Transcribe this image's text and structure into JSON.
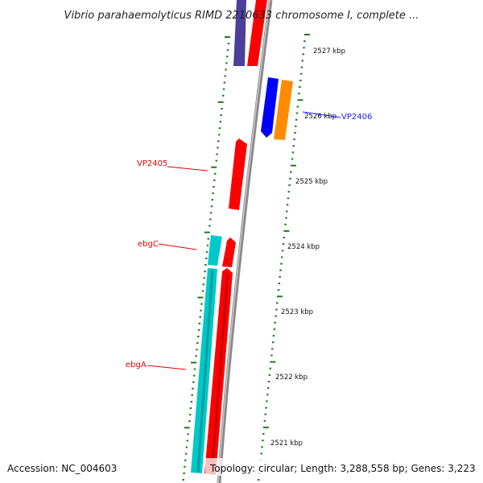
{
  "map": {
    "title": "Vibrio parahaemolyticus RIMD 2210633 chromosome I, complete ...",
    "accession": "Accession: NC_004603",
    "summary": "Topology: circular; Length: 3,288,558 bp; Genes: 3,223"
  },
  "ticks": [
    {
      "label": "2527 kbp"
    },
    {
      "label": "2526 kbp"
    },
    {
      "label": "2525 kbp"
    },
    {
      "label": "2524 kbp"
    },
    {
      "label": "2523 kbp"
    },
    {
      "label": "2522 kbp"
    },
    {
      "label": "2521 kbp"
    }
  ],
  "gene_labels": [
    {
      "name": "VP2406",
      "color": "#1a1aff"
    },
    {
      "name": "VP2405",
      "color": "#e00000"
    },
    {
      "name": "ebgC",
      "color": "#e00000"
    },
    {
      "name": "ebgA",
      "color": "#e00000"
    }
  ],
  "colors": {
    "backbone": "#8a8a8a",
    "tick_marks": "#1f7a1f",
    "red_gene": "#ff0000",
    "blue_gene": "#0000ff",
    "orange_gene": "#ff8c00",
    "cyan_gene": "#00c8c8",
    "purple_gene": "#4b3f9a"
  }
}
